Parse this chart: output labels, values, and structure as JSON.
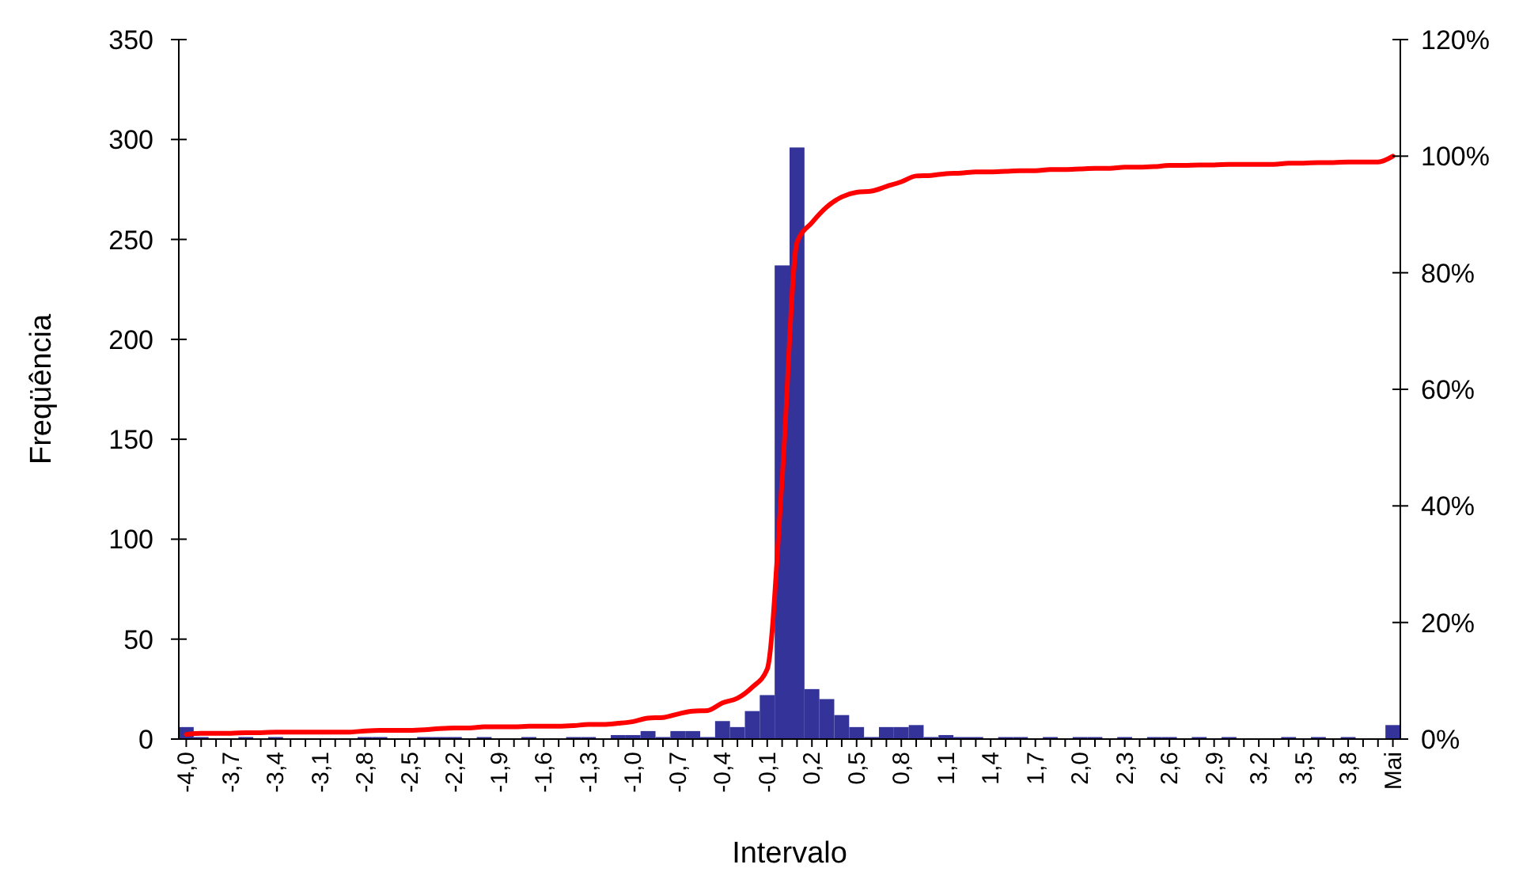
{
  "chart_data": {
    "type": "bar",
    "xlabel": "Intervalo",
    "ylabel": "Freqüência",
    "categories": [
      "-4,0",
      null,
      null,
      "-3,7",
      null,
      null,
      "-3,4",
      null,
      null,
      "-3,1",
      null,
      null,
      "-2,8",
      null,
      null,
      "-2,5",
      null,
      null,
      "-2,2",
      null,
      null,
      "-1,9",
      null,
      null,
      "-1,6",
      null,
      null,
      "-1,3",
      null,
      null,
      "-1,0",
      null,
      null,
      "-0,7",
      null,
      null,
      "-0,4",
      null,
      null,
      "-0,1",
      null,
      null,
      "0,2",
      null,
      null,
      "0,5",
      null,
      null,
      "0,8",
      null,
      null,
      "1,1",
      null,
      null,
      "1,4",
      null,
      null,
      "1,7",
      null,
      null,
      "2,0",
      null,
      null,
      "2,3",
      null,
      null,
      "2,6",
      null,
      null,
      "2,9",
      null,
      null,
      "3,2",
      null,
      null,
      "3,5",
      null,
      null,
      "3,8",
      null,
      null,
      "Mai"
    ],
    "series": [
      {
        "color": "#333399",
        "values": [
          6,
          1,
          0,
          0,
          1,
          0,
          1,
          0,
          0,
          0,
          0,
          0,
          1,
          1,
          0,
          0,
          1,
          1,
          1,
          0,
          1,
          0,
          0,
          1,
          0,
          0,
          1,
          1,
          0,
          2,
          2,
          4,
          1,
          4,
          4,
          1,
          9,
          6,
          14,
          22,
          237,
          296,
          25,
          20,
          12,
          6,
          1,
          6,
          6,
          7,
          1,
          2,
          1,
          1,
          0,
          1,
          1,
          0,
          1,
          0,
          1,
          1,
          0,
          1,
          0,
          1,
          1,
          0,
          1,
          0,
          1,
          0,
          0,
          0,
          1,
          0,
          1,
          0,
          1,
          0,
          0,
          7
        ]
      },
      {
        "type": "line",
        "axis": "y2",
        "color": "#ff0000",
        "values": [
          0.8,
          1.0,
          1.0,
          1.0,
          1.1,
          1.1,
          1.2,
          1.2,
          1.2,
          1.2,
          1.2,
          1.2,
          1.4,
          1.5,
          1.5,
          1.5,
          1.6,
          1.8,
          1.9,
          1.9,
          2.1,
          2.1,
          2.1,
          2.2,
          2.2,
          2.2,
          2.3,
          2.5,
          2.5,
          2.7,
          3.0,
          3.6,
          3.7,
          4.3,
          4.8,
          4.9,
          6.2,
          7.0,
          8.9,
          12.0,
          44.5,
          85.2,
          88.6,
          91.3,
          93.0,
          93.8,
          94.0,
          94.8,
          95.6,
          96.6,
          96.7,
          97.0,
          97.1,
          97.3,
          97.3,
          97.4,
          97.5,
          97.5,
          97.7,
          97.7,
          97.8,
          97.9,
          97.9,
          98.1,
          98.1,
          98.2,
          98.4,
          98.4,
          98.5,
          98.5,
          98.6,
          98.6,
          98.6,
          98.6,
          98.8,
          98.8,
          98.9,
          98.9,
          99.0,
          99.0,
          99.0,
          100
        ]
      }
    ],
    "ylim": [
      0,
      350
    ],
    "yticks": [
      0,
      50,
      100,
      150,
      200,
      250,
      300,
      350
    ],
    "y2lim": [
      0,
      120
    ],
    "y2ticks": [
      {
        "value": 0,
        "label": "0%"
      },
      {
        "value": 20,
        "label": "20%"
      },
      {
        "value": 40,
        "label": "40%"
      },
      {
        "value": 60,
        "label": "60%"
      },
      {
        "value": 80,
        "label": "80%"
      },
      {
        "value": 100,
        "label": "100%"
      },
      {
        "value": 120,
        "label": "120%"
      }
    ],
    "grid": false
  }
}
